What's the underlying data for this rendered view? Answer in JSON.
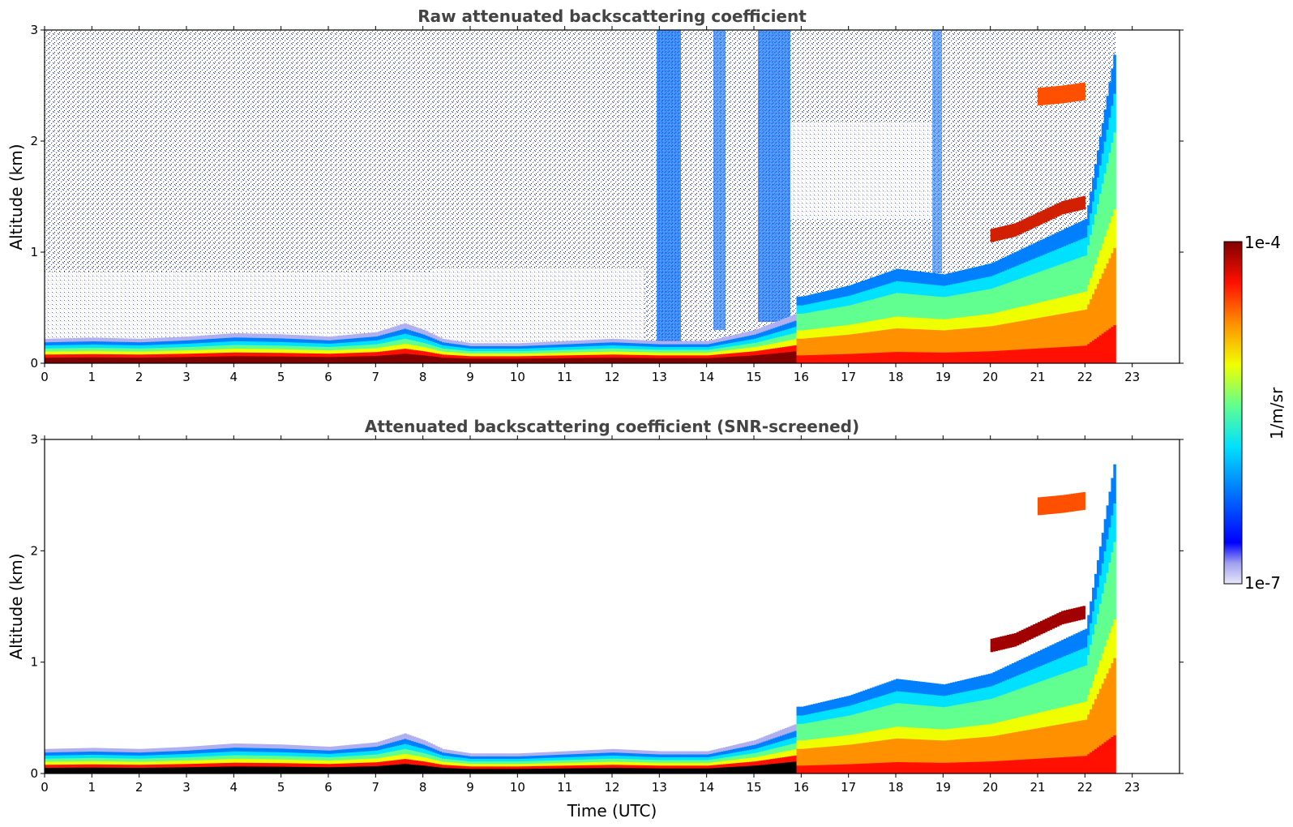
{
  "chart_data": [
    {
      "type": "heatmap",
      "title": "Raw attenuated backscattering coefficient",
      "xlabel": "",
      "ylabel": "Altitude (km)",
      "xlim": [
        0,
        24
      ],
      "ylim": [
        0,
        3
      ],
      "xticks": [
        "0",
        "1",
        "2",
        "3",
        "4",
        "5",
        "6",
        "7",
        "8",
        "9",
        "10",
        "11",
        "12",
        "13",
        "14",
        "15",
        "16",
        "17",
        "18",
        "19",
        "20",
        "21",
        "22",
        "23"
      ],
      "yticks": [
        "0",
        "1",
        "2",
        "3"
      ],
      "data_end_hour": 22.65,
      "layers": [
        {
          "name": "surface layer top (km)",
          "x": [
            0,
            1,
            2,
            3,
            4,
            5,
            6,
            7,
            7.6,
            8,
            8.4,
            9,
            10,
            11,
            12,
            13,
            14,
            15,
            15.9
          ],
          "y": [
            0.22,
            0.23,
            0.22,
            0.24,
            0.27,
            0.26,
            0.24,
            0.28,
            0.36,
            0.3,
            0.22,
            0.18,
            0.18,
            0.2,
            0.22,
            0.2,
            0.2,
            0.3,
            0.45
          ]
        },
        {
          "name": "mixed layer top (km)",
          "x": [
            16,
            17,
            18,
            19,
            20,
            21,
            22,
            22.65
          ],
          "y": [
            0.6,
            0.7,
            0.85,
            0.8,
            0.9,
            1.1,
            1.3,
            2.9
          ]
        },
        {
          "name": "elevated aerosol layer (km)",
          "x": [
            20,
            20.5,
            21,
            21.5,
            22
          ],
          "y": [
            1.15,
            1.2,
            1.3,
            1.4,
            1.45
          ]
        },
        {
          "name": "upper aerosol layer (km)",
          "x": [
            21,
            21.5,
            22
          ],
          "y": [
            2.4,
            2.42,
            2.45
          ]
        }
      ]
    },
    {
      "type": "heatmap",
      "title": "Attenuated backscattering coefficient (SNR-screened)",
      "xlabel": "Time (UTC)",
      "ylabel": "Altitude (km)",
      "xlim": [
        0,
        24
      ],
      "ylim": [
        0,
        3
      ],
      "xticks": [
        "0",
        "1",
        "2",
        "3",
        "4",
        "5",
        "6",
        "7",
        "8",
        "9",
        "10",
        "11",
        "12",
        "13",
        "14",
        "15",
        "16",
        "17",
        "18",
        "19",
        "20",
        "21",
        "22",
        "23"
      ],
      "yticks": [
        "0",
        "1",
        "2",
        "3"
      ],
      "data_end_hour": 22.65,
      "screened": true
    }
  ],
  "colorbar": {
    "label": "1/m/sr",
    "max_label": "1e-4",
    "min_label": "1e-7",
    "scale": "log",
    "range": [
      1e-07,
      0.0001
    ],
    "colormap": [
      "#e8e8f8",
      "#b0b0f0",
      "#0000ff",
      "#0080ff",
      "#00e0ff",
      "#60ff90",
      "#f0ff00",
      "#ff9000",
      "#ff1000",
      "#b00000",
      "#800000"
    ]
  }
}
